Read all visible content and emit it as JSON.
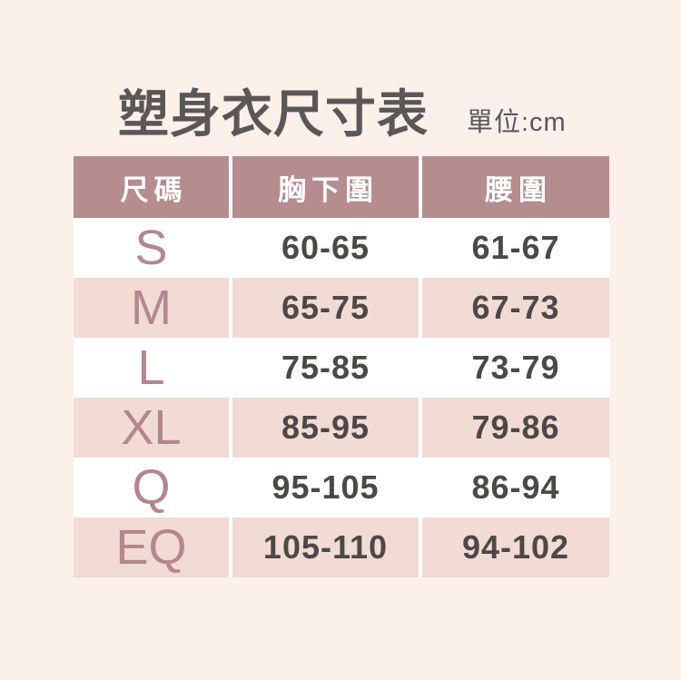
{
  "title": "塑身衣尺寸表",
  "unit_label": "單位:cm",
  "chart_data": {
    "type": "table",
    "title": "塑身衣尺寸表",
    "unit": "cm",
    "columns": [
      "尺碼",
      "胸下圍",
      "腰圍"
    ],
    "rows": [
      [
        "S",
        "60-65",
        "61-67"
      ],
      [
        "M",
        "65-75",
        "67-73"
      ],
      [
        "L",
        "75-85",
        "73-79"
      ],
      [
        "XL",
        "85-95",
        "79-86"
      ],
      [
        "Q",
        "95-105",
        "86-94"
      ],
      [
        "EQ",
        "105-110",
        "94-102"
      ]
    ]
  },
  "colors": {
    "page_background": "#fcf0eb",
    "header_background": "#b58c90",
    "header_text": "#ffffff",
    "alt_row_background": "#f1dbd4",
    "row_background": "#ffffff",
    "size_letter_text": "#b4878c",
    "value_text": "#4d4848",
    "title_text": "#5c5757",
    "column_separator": "#ffffff"
  }
}
